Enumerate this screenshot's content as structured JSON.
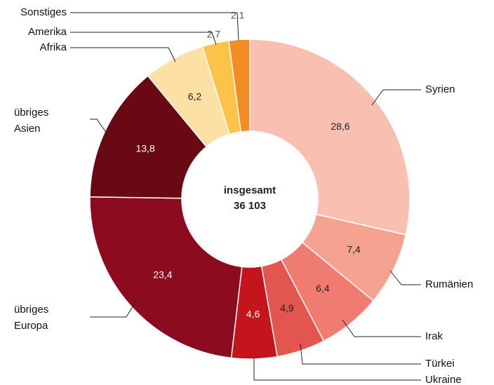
{
  "chart_data": {
    "type": "donut",
    "categories": [
      "Syrien",
      "Rumänien",
      "Irak",
      "Türkei",
      "Ukraine",
      "übriges Europa",
      "übriges Asien",
      "Afrika",
      "Amerika",
      "Sonstiges"
    ],
    "values": [
      28.6,
      7.4,
      6.4,
      4.9,
      4.6,
      23.4,
      13.8,
      6.2,
      2.7,
      2.1
    ],
    "value_labels": [
      "28,6",
      "7,4",
      "6,4",
      "4,9",
      "4,6",
      "23,4",
      "13,8",
      "6,2",
      "2,7",
      "2,1"
    ],
    "colors": [
      "#f9c0b1",
      "#f5a291",
      "#ef7b71",
      "#e3554f",
      "#c4151c",
      "#8d0b1e",
      "#690914",
      "#fde0a4",
      "#fcc34b",
      "#f48c24"
    ],
    "center_title": "insgesamt",
    "center_value": {
      "value": 36103,
      "label": "36 103"
    }
  }
}
